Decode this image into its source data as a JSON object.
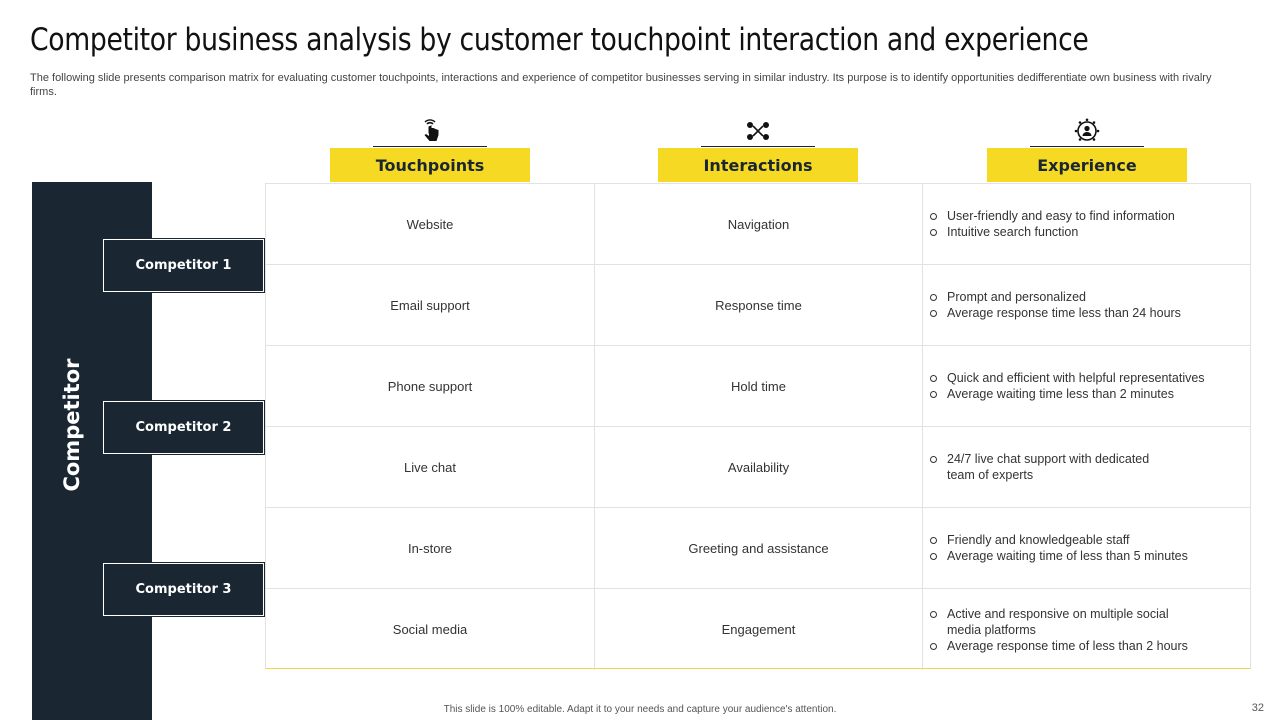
{
  "title": "Competitor business analysis by customer touchpoint interaction and experience",
  "subtitle": "The following slide presents comparison matrix for evaluating customer touchpoints, interactions and experience of competitor businesses serving in similar industry. Its purpose is to identify opportunities dedifferentiate own business with rivalry firms.",
  "sidebar": {
    "label": "Competitor"
  },
  "competitors": [
    "Competitor 1",
    "Competitor 2",
    "Competitor 3"
  ],
  "columns": [
    {
      "label": "Touchpoints",
      "icon": "touch-hand-icon"
    },
    {
      "label": "Interactions",
      "icon": "network-icon"
    },
    {
      "label": "Experience",
      "icon": "people-group-icon"
    }
  ],
  "rows": [
    {
      "touchpoint": "Website",
      "interaction": "Navigation",
      "experience": [
        "User-friendly  and easy to find information",
        "Intuitive search function"
      ]
    },
    {
      "touchpoint": "Email support",
      "interaction": "Response time",
      "experience": [
        "Prompt and personalized",
        "Average  response time less than 24 hours"
      ]
    },
    {
      "touchpoint": "Phone support",
      "interaction": "Hold time",
      "experience": [
        "Quick and efficient  with helpful representatives",
        "Average  waiting time less than 2 minutes"
      ]
    },
    {
      "touchpoint": "Live  chat",
      "interaction": "Availability",
      "experience": [
        "24/7 live  chat support with dedicated team of experts"
      ]
    },
    {
      "touchpoint": "In-store",
      "interaction": "Greeting and assistance",
      "experience": [
        "Friendly  and knowledgeable  staff",
        "Average  waiting time of less than 5 minutes"
      ]
    },
    {
      "touchpoint": "Social media",
      "interaction": "Engagement",
      "experience": [
        "Active and responsive  on multiple social media platforms",
        "Average  response time of less than 2 hours"
      ]
    }
  ],
  "colors": {
    "accent": "#f5d922",
    "dark": "#1a2733"
  },
  "footer": "This slide is 100% editable.  Adapt it to your needs and capture your audience's attention.",
  "page_number": "32"
}
